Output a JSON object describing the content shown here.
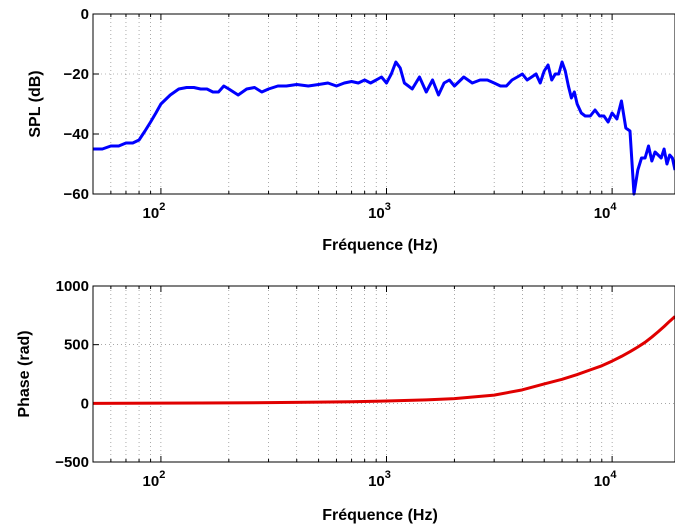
{
  "chart_data": [
    {
      "type": "line",
      "xscale": "log",
      "xlim": [
        50,
        19000
      ],
      "ylim": [
        -60,
        0
      ],
      "xlabel": "Fréquence (Hz)",
      "ylabel": "SPL (dB)",
      "grid": true,
      "xticks": [
        {
          "value": 100,
          "base": "10",
          "exp": "2"
        },
        {
          "value": 1000,
          "base": "10",
          "exp": "3"
        },
        {
          "value": 10000,
          "base": "10",
          "exp": "4"
        }
      ],
      "yticks": [
        {
          "value": 0,
          "label": "0"
        },
        {
          "value": -20,
          "label": "−20"
        },
        {
          "value": -40,
          "label": "−40"
        },
        {
          "value": -60,
          "label": "−60"
        }
      ],
      "series": [
        {
          "color": "#0000ff",
          "x": [
            50,
            55,
            60,
            65,
            70,
            75,
            80,
            85,
            90,
            95,
            100,
            110,
            120,
            130,
            140,
            150,
            160,
            170,
            180,
            190,
            200,
            220,
            240,
            260,
            280,
            300,
            330,
            360,
            400,
            450,
            500,
            550,
            600,
            650,
            700,
            750,
            800,
            850,
            900,
            950,
            1000,
            1050,
            1100,
            1150,
            1200,
            1250,
            1300,
            1400,
            1500,
            1600,
            1700,
            1800,
            1900,
            2000,
            2200,
            2400,
            2600,
            2800,
            3000,
            3200,
            3400,
            3600,
            3800,
            4000,
            4200,
            4400,
            4600,
            4800,
            5000,
            5200,
            5400,
            5600,
            5800,
            6000,
            6200,
            6400,
            6600,
            6800,
            7000,
            7300,
            7600,
            8000,
            8400,
            8800,
            9200,
            9600,
            10000,
            10500,
            11000,
            11500,
            12000,
            12500,
            13000,
            13500,
            14000,
            14500,
            15000,
            15500,
            16000,
            16500,
            17000,
            17500,
            18000,
            18500,
            19000
          ],
          "y": [
            -45,
            -45,
            -44,
            -44,
            -43,
            -43,
            -42,
            -39,
            -36,
            -33,
            -30,
            -27,
            -25,
            -24.5,
            -24.5,
            -25,
            -25,
            -26,
            -26,
            -24,
            -25,
            -27,
            -25,
            -24.5,
            -26,
            -25,
            -24,
            -24,
            -23.5,
            -24,
            -23.5,
            -23,
            -24,
            -23,
            -22.5,
            -23,
            -22,
            -23,
            -22,
            -21,
            -23,
            -20,
            -16,
            -18,
            -23,
            -24,
            -25,
            -21,
            -26,
            -22,
            -27,
            -23,
            -22,
            -24,
            -21,
            -23,
            -22,
            -22,
            -23,
            -24,
            -24,
            -22,
            -21,
            -20,
            -22,
            -21,
            -20,
            -23,
            -19,
            -17,
            -22,
            -20,
            -20,
            -16,
            -19,
            -24,
            -28,
            -26,
            -30,
            -33,
            -34,
            -34,
            -32,
            -34,
            -34,
            -36,
            -33,
            -35,
            -29,
            -38,
            -39,
            -60,
            -52,
            -48,
            -48,
            -44,
            -49,
            -46,
            -47,
            -48,
            -45,
            -50,
            -47,
            -48,
            -52
          ]
        }
      ]
    },
    {
      "type": "line",
      "xscale": "log",
      "xlim": [
        50,
        19000
      ],
      "ylim": [
        -500,
        1000
      ],
      "xlabel": "Fréquence (Hz)",
      "ylabel": "Phase (rad)",
      "grid": true,
      "xticks": [
        {
          "value": 100,
          "base": "10",
          "exp": "2"
        },
        {
          "value": 1000,
          "base": "10",
          "exp": "3"
        },
        {
          "value": 10000,
          "base": "10",
          "exp": "4"
        }
      ],
      "yticks": [
        {
          "value": 1000,
          "label": "1000"
        },
        {
          "value": 500,
          "label": "500"
        },
        {
          "value": 0,
          "label": "0"
        },
        {
          "value": -500,
          "label": "−500"
        }
      ],
      "series": [
        {
          "color": "#e00000",
          "x": [
            50,
            70,
            100,
            150,
            200,
            300,
            500,
            700,
            1000,
            1500,
            2000,
            3000,
            4000,
            5000,
            6000,
            7000,
            8000,
            9000,
            10000,
            11000,
            12000,
            13000,
            14000,
            15000,
            16000,
            17000,
            18000,
            19000
          ],
          "y": [
            0,
            1,
            2,
            3,
            4,
            6,
            10,
            14,
            20,
            29,
            40,
            70,
            115,
            165,
            205,
            245,
            285,
            320,
            360,
            400,
            440,
            480,
            520,
            565,
            610,
            655,
            700,
            740
          ]
        }
      ]
    }
  ]
}
